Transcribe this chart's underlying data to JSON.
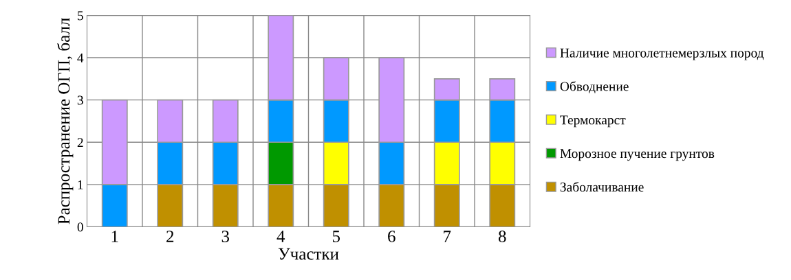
{
  "chart_data": {
    "type": "bar",
    "stacked": true,
    "xlabel": "Участки",
    "ylabel": "Распространение ОГП, балл",
    "categories": [
      "1",
      "2",
      "3",
      "4",
      "5",
      "6",
      "7",
      "8"
    ],
    "series": [
      {
        "name": "Заболачивание",
        "color": "#c09000",
        "values": [
          null,
          1,
          1,
          1,
          1,
          1,
          1,
          1
        ]
      },
      {
        "name": "Морозное пучение грунтов",
        "color": "#009900",
        "values": [
          null,
          null,
          null,
          1,
          null,
          null,
          null,
          null
        ]
      },
      {
        "name": "Термокарст",
        "color": "#ffff00",
        "values": [
          null,
          null,
          null,
          null,
          1,
          null,
          1,
          1
        ]
      },
      {
        "name": "Обводнение",
        "color": "#0099ff",
        "values": [
          1,
          1,
          1,
          1,
          1,
          1,
          1,
          1
        ]
      },
      {
        "name": "Наличие многолетнемерзлых пород",
        "color": "#cc99ff",
        "values": [
          2,
          1,
          1,
          2,
          1,
          2,
          0.5,
          0.5
        ]
      }
    ],
    "ylim": [
      0,
      5
    ],
    "yticks": [
      0,
      1,
      2,
      3,
      4,
      5
    ],
    "grid": true,
    "legend": "right"
  }
}
